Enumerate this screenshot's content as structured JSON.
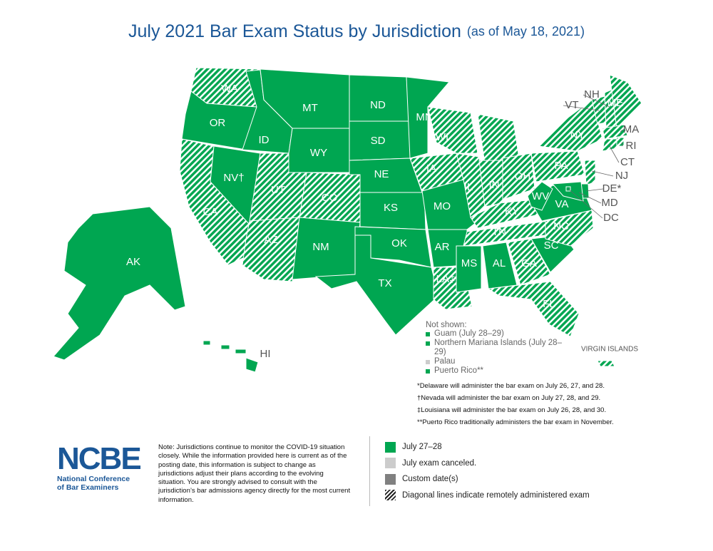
{
  "header": {
    "title": "July 2021 Bar Exam Status by Jurisdiction",
    "subtitle": "(as of May 18, 2021)"
  },
  "map": {
    "color": "#00a651",
    "hatch_color": "#ffffff",
    "states": [
      {
        "label": "WA",
        "remote": true
      },
      {
        "label": "OR",
        "remote": false
      },
      {
        "label": "CA",
        "remote": true
      },
      {
        "label": "NV†",
        "remote": false
      },
      {
        "label": "ID",
        "remote": false
      },
      {
        "label": "MT",
        "remote": false
      },
      {
        "label": "WY",
        "remote": false
      },
      {
        "label": "UT",
        "remote": true
      },
      {
        "label": "CO",
        "remote": true
      },
      {
        "label": "AZ",
        "remote": true
      },
      {
        "label": "NM",
        "remote": false
      },
      {
        "label": "ND",
        "remote": false
      },
      {
        "label": "SD",
        "remote": false
      },
      {
        "label": "NE",
        "remote": false
      },
      {
        "label": "KS",
        "remote": false
      },
      {
        "label": "OK",
        "remote": false
      },
      {
        "label": "TX",
        "remote": false
      },
      {
        "label": "MN",
        "remote": false
      },
      {
        "label": "IA",
        "remote": true
      },
      {
        "label": "MO",
        "remote": false
      },
      {
        "label": "AR",
        "remote": false
      },
      {
        "label": "LA‡",
        "remote": true
      },
      {
        "label": "WI",
        "remote": true
      },
      {
        "label": "MI",
        "remote": true
      },
      {
        "label": "IL",
        "remote": true
      },
      {
        "label": "IN",
        "remote": true
      },
      {
        "label": "OH",
        "remote": true
      },
      {
        "label": "KY",
        "remote": true
      },
      {
        "label": "TN",
        "remote": true
      },
      {
        "label": "MS",
        "remote": false
      },
      {
        "label": "AL",
        "remote": false
      },
      {
        "label": "GA",
        "remote": true
      },
      {
        "label": "FL",
        "remote": true
      },
      {
        "label": "SC",
        "remote": false
      },
      {
        "label": "NC",
        "remote": true
      },
      {
        "label": "VA",
        "remote": false
      },
      {
        "label": "WV",
        "remote": false
      },
      {
        "label": "PA",
        "remote": true
      },
      {
        "label": "NY",
        "remote": true
      },
      {
        "label": "VT",
        "remote": true
      },
      {
        "label": "NH",
        "remote": true
      },
      {
        "label": "ME",
        "remote": true
      },
      {
        "label": "MA",
        "remote": true
      },
      {
        "label": "RI",
        "remote": true
      },
      {
        "label": "CT",
        "remote": true
      },
      {
        "label": "NJ",
        "remote": true
      },
      {
        "label": "DE*",
        "remote": false
      },
      {
        "label": "MD",
        "remote": false
      },
      {
        "label": "DC",
        "remote": false
      },
      {
        "label": "AK",
        "remote": false
      },
      {
        "label": "HI",
        "remote": false
      },
      {
        "label": "VIRGIN ISLANDS",
        "remote": true
      }
    ]
  },
  "not_shown": {
    "title": "Not shown:",
    "items": [
      {
        "label": "Guam (July 28–29)",
        "color": "#00a651"
      },
      {
        "label": "Northern Mariana Islands (July 28–29)",
        "color": "#00a651"
      },
      {
        "label": "Palau",
        "color": "#cccccc"
      },
      {
        "label": "Puerto Rico**",
        "color": "#00a651"
      }
    ]
  },
  "footnotes": [
    "*Delaware will administer the bar exam on July 26, 27, and 28.",
    "†Nevada will administer the bar exam on July 27, 28, and 29.",
    "‡Louisiana will administer the bar exam on July 26, 28, and 30.",
    "**Puerto Rico traditionally administers the bar exam in November."
  ],
  "logo": {
    "mark": "NCBE",
    "name": "National Conference of Bar Examiners"
  },
  "note": "Note: Jurisdictions continue to monitor the COVID-19 situation closely. While the information provided here is current as of the posting date, this information is subject to change as jurisdictions adjust their plans according to the evolving situation. You are strongly advised to consult with the jurisdiction’s bar admissions agency directly for the most current information.",
  "legend": [
    {
      "label": "July 27–28",
      "color": "#00a651"
    },
    {
      "label": "July exam canceled.",
      "color": "#cccccc"
    },
    {
      "label": "Custom date(s)",
      "color": "#808080"
    },
    {
      "label": "Diagonal lines indicate remotely administered exam",
      "hatch": true
    }
  ]
}
